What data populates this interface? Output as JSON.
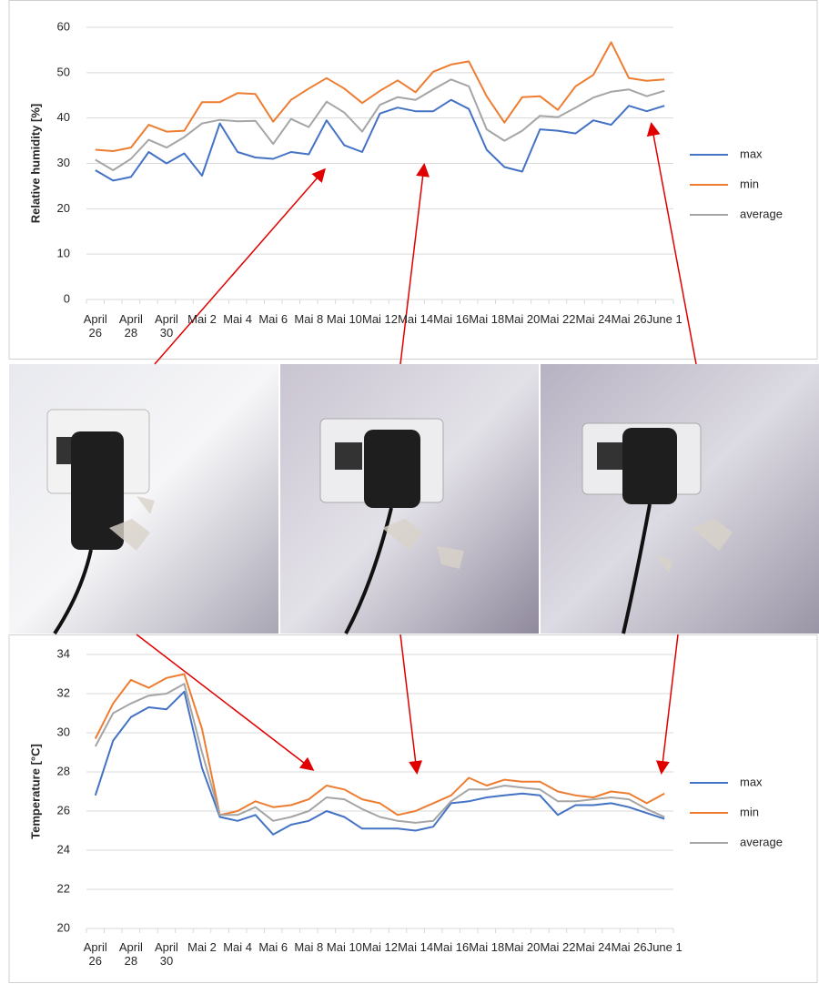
{
  "chart_data": [
    {
      "type": "line",
      "y_label": "Relative humidity [%]",
      "categories": [
        "April 26",
        null,
        "April 28",
        null,
        "April 30",
        null,
        "Mai 2",
        null,
        "Mai 4",
        null,
        "Mai 6",
        null,
        "Mai 8",
        null,
        "Mai 10",
        null,
        "Mai 12",
        null,
        "Mai 14",
        null,
        "Mai 16",
        null,
        "Mai 18",
        null,
        "Mai 20",
        null,
        "Mai 22",
        null,
        "Mai 24",
        null,
        "Mai 26",
        null,
        "June 1"
      ],
      "series": [
        {
          "name": "max",
          "color": "#4472c4",
          "values": [
            28.5,
            26.2,
            27,
            32.5,
            30,
            32.2,
            27.3,
            38.8,
            32.5,
            31.3,
            31,
            32.5,
            32,
            39.5,
            34,
            32.5,
            41,
            42.3,
            41.5,
            41.5,
            44,
            42,
            33,
            29.2,
            28.2,
            37.5,
            37.2,
            36.6,
            39.5,
            38.5,
            42.7,
            41.5,
            42.7
          ]
        },
        {
          "name": "min",
          "color": "#ed7d31",
          "values": [
            33,
            32.7,
            33.5,
            38.5,
            37,
            37.2,
            43.5,
            43.5,
            45.5,
            45.3,
            39.2,
            44,
            46.5,
            48.8,
            46.5,
            43.3,
            46,
            48.3,
            45.7,
            50.2,
            51.8,
            52.5,
            44.8,
            39,
            44.6,
            44.8,
            41.8,
            47,
            49.5,
            56.7,
            48.8,
            48.2,
            48.5
          ]
        },
        {
          "name": "average",
          "color": "#a5a5a5",
          "values": [
            30.8,
            28.5,
            31,
            35.2,
            33.5,
            35.8,
            38.8,
            39.6,
            39.3,
            39.4,
            34.3,
            39.8,
            38,
            43.6,
            41.2,
            37,
            42.9,
            44.6,
            44,
            46.3,
            48.5,
            47,
            37.5,
            35,
            37.2,
            40.5,
            40.2,
            42.3,
            44.5,
            45.8,
            46.3,
            44.8,
            46
          ]
        }
      ],
      "ylim": [
        0,
        60
      ],
      "yticks": [
        0,
        10,
        20,
        30,
        40,
        50,
        60
      ],
      "grid": true,
      "legend": "right"
    },
    {
      "type": "line",
      "y_label": "Temperature [°C]",
      "categories": [
        "April 26",
        null,
        "April 28",
        null,
        "April 30",
        null,
        "Mai 2",
        null,
        "Mai 4",
        null,
        "Mai 6",
        null,
        "Mai 8",
        null,
        "Mai 10",
        null,
        "Mai 12",
        null,
        "Mai 14",
        null,
        "Mai 16",
        null,
        "Mai 18",
        null,
        "Mai 20",
        null,
        "Mai 22",
        null,
        "Mai 24",
        null,
        "Mai 26",
        null,
        "June 1"
      ],
      "series": [
        {
          "name": "max",
          "color": "#4472c4",
          "values": [
            26.8,
            29.6,
            30.8,
            31.3,
            31.2,
            32.1,
            28.2,
            25.7,
            25.5,
            25.8,
            24.8,
            25.3,
            25.5,
            26,
            25.7,
            25.1,
            25.1,
            25.1,
            25,
            25.2,
            26.4,
            26.5,
            26.7,
            26.8,
            26.9,
            26.8,
            25.8,
            26.3,
            26.3,
            26.4,
            26.2,
            25.9,
            25.6
          ]
        },
        {
          "name": "min",
          "color": "#ed7d31",
          "values": [
            29.7,
            31.5,
            32.7,
            32.3,
            32.8,
            33,
            30.2,
            25.8,
            26,
            26.5,
            26.2,
            26.3,
            26.6,
            27.3,
            27.1,
            26.6,
            26.4,
            25.8,
            26,
            26.4,
            26.8,
            27.7,
            27.3,
            27.6,
            27.5,
            27.5,
            27,
            26.8,
            26.7,
            27,
            26.9,
            26.4,
            26.9
          ]
        },
        {
          "name": "average",
          "color": "#a5a5a5",
          "values": [
            29.3,
            31,
            31.5,
            31.9,
            32,
            32.5,
            29,
            25.8,
            25.8,
            26.2,
            25.5,
            25.7,
            26,
            26.7,
            26.6,
            26.1,
            25.7,
            25.5,
            25.4,
            25.5,
            26.5,
            27.1,
            27.1,
            27.3,
            27.2,
            27.1,
            26.5,
            26.5,
            26.6,
            26.7,
            26.6,
            26.1,
            25.7
          ]
        }
      ],
      "ylim": [
        20,
        34
      ],
      "yticks": [
        20,
        22,
        24,
        26,
        28,
        30,
        32,
        34
      ],
      "grid": true,
      "legend": "right"
    }
  ]
}
